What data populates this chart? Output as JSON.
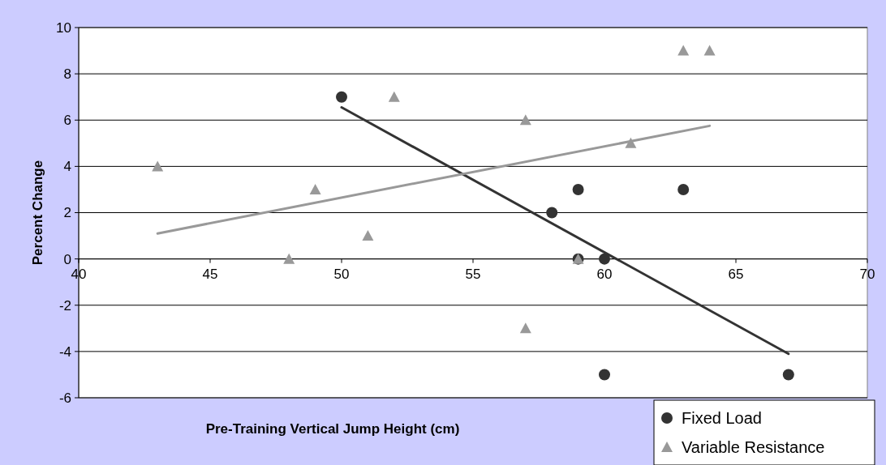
{
  "chart_data": {
    "type": "scatter",
    "xlabel": "Pre-Training Vertical Jump Height (cm)",
    "ylabel": "Percent Change",
    "xlim": [
      40,
      70
    ],
    "xticks": [
      40,
      45,
      50,
      55,
      60,
      65,
      70
    ],
    "ylim": [
      -6,
      10
    ],
    "yticks": [
      -6,
      -4,
      -2,
      0,
      2,
      4,
      6,
      8,
      10
    ],
    "grid": "y",
    "legend": "bottom right",
    "series": [
      {
        "name": "Fixed Load",
        "color": "#333333",
        "marker": "circle",
        "x": [
          50,
          58,
          59,
          59,
          60,
          60,
          63,
          67
        ],
        "values": [
          7,
          2,
          3,
          0,
          0,
          -5,
          3,
          -5
        ]
      },
      {
        "name": "Variable Resistance",
        "color": "#999999",
        "marker": "triangle",
        "x": [
          43,
          48,
          49,
          51,
          52,
          57,
          57,
          59,
          61,
          63,
          64
        ],
        "values": [
          4,
          0,
          3,
          1,
          7,
          6,
          -3,
          0,
          5,
          9,
          9
        ]
      },
      {
        "type": "line",
        "color": "#333333",
        "marker": "none",
        "x": [
          50,
          67
        ],
        "values": [
          6.55,
          -4.1
        ]
      },
      {
        "type": "line",
        "color": "#999999",
        "marker": "none",
        "x": [
          43,
          64
        ],
        "values": [
          1.1,
          5.75
        ]
      }
    ]
  }
}
